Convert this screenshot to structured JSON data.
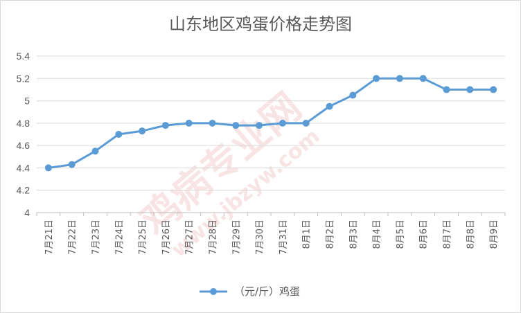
{
  "chart_data": {
    "type": "line",
    "title": "山东地区鸡蛋价格走势图",
    "categories": [
      "7月21日",
      "7月22日",
      "7月23日",
      "7月24日",
      "7月25日",
      "7月26日",
      "7月27日",
      "7月28日",
      "7月29日",
      "7月30日",
      "7月31日",
      "8月1日",
      "8月2日",
      "8月3日",
      "8月4日",
      "8月5日",
      "8月6日",
      "8月7日",
      "8月8日",
      "8月9日"
    ],
    "series": [
      {
        "name": "（元/斤）鸡蛋",
        "values": [
          4.4,
          4.43,
          4.55,
          4.7,
          4.73,
          4.78,
          4.8,
          4.8,
          4.78,
          4.78,
          4.8,
          4.8,
          4.95,
          5.05,
          5.2,
          5.2,
          5.2,
          5.1,
          5.1,
          5.1
        ],
        "color": "#5b9bd5"
      }
    ],
    "ylim": [
      4,
      5.4
    ],
    "yticks": [
      "4",
      "4.2",
      "4.4",
      "4.6",
      "4.8",
      "5",
      "5.2",
      "5.4"
    ],
    "grid": true,
    "legend_position": "bottom"
  },
  "watermark": {
    "text": "鸡病专业网",
    "url": "www.jbzyw.com"
  }
}
